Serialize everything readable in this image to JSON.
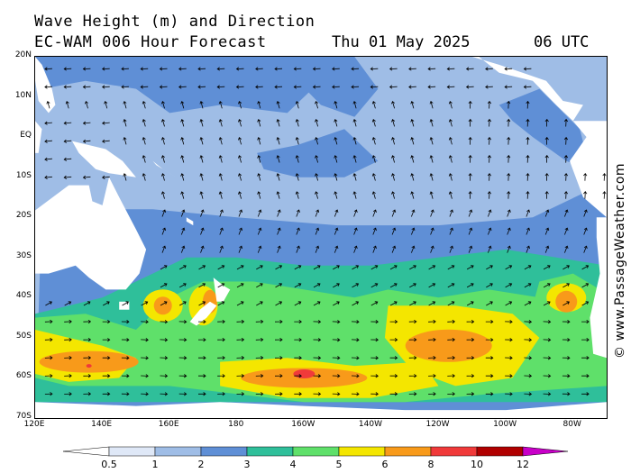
{
  "header": {
    "title": "Wave Height (m) and Direction",
    "subtitle": "EC-WAM 006 Hour Forecast",
    "date": "Thu 01 May 2025",
    "time": "06 UTC"
  },
  "credit": "© www.PassageWeather.com",
  "map": {
    "lon_range": [
      120,
      290
    ],
    "lat_range": [
      -70,
      20
    ],
    "lat_labels": [
      {
        "lat": 20,
        "text": "20N"
      },
      {
        "lat": 10,
        "text": "10N"
      },
      {
        "lat": 0,
        "text": "EQ"
      },
      {
        "lat": -10,
        "text": "10S"
      },
      {
        "lat": -20,
        "text": "20S"
      },
      {
        "lat": -30,
        "text": "30S"
      },
      {
        "lat": -40,
        "text": "40S"
      },
      {
        "lat": -50,
        "text": "50S"
      },
      {
        "lat": -60,
        "text": "60S"
      },
      {
        "lat": -70,
        "text": "70S"
      }
    ],
    "lon_labels": [
      {
        "lon": 120,
        "text": "120E"
      },
      {
        "lon": 140,
        "text": "140E"
      },
      {
        "lon": 160,
        "text": "160E"
      },
      {
        "lon": 180,
        "text": "180"
      },
      {
        "lon": 200,
        "text": "160W"
      },
      {
        "lon": 220,
        "text": "140W"
      },
      {
        "lon": 240,
        "text": "120W"
      },
      {
        "lon": 260,
        "text": "100W"
      },
      {
        "lon": 280,
        "text": "80W"
      }
    ]
  },
  "legend": {
    "bins": [
      {
        "color": "#dfe8f7"
      },
      {
        "color": "#9fbde6"
      },
      {
        "color": "#5f8fd6"
      },
      {
        "color": "#2fbf9a"
      },
      {
        "color": "#5fe06a"
      },
      {
        "color": "#f4e600"
      },
      {
        "color": "#f89a1a"
      },
      {
        "color": "#f03a3a"
      },
      {
        "color": "#b00000"
      }
    ],
    "overflow_color": "#c800c8",
    "labels": [
      "0.5",
      "1",
      "2",
      "3",
      "4",
      "5",
      "6",
      "8",
      "10",
      "12"
    ]
  },
  "colors": {
    "land": "#ffffff",
    "ice": "#ffffff",
    "arrow": "#000000"
  }
}
